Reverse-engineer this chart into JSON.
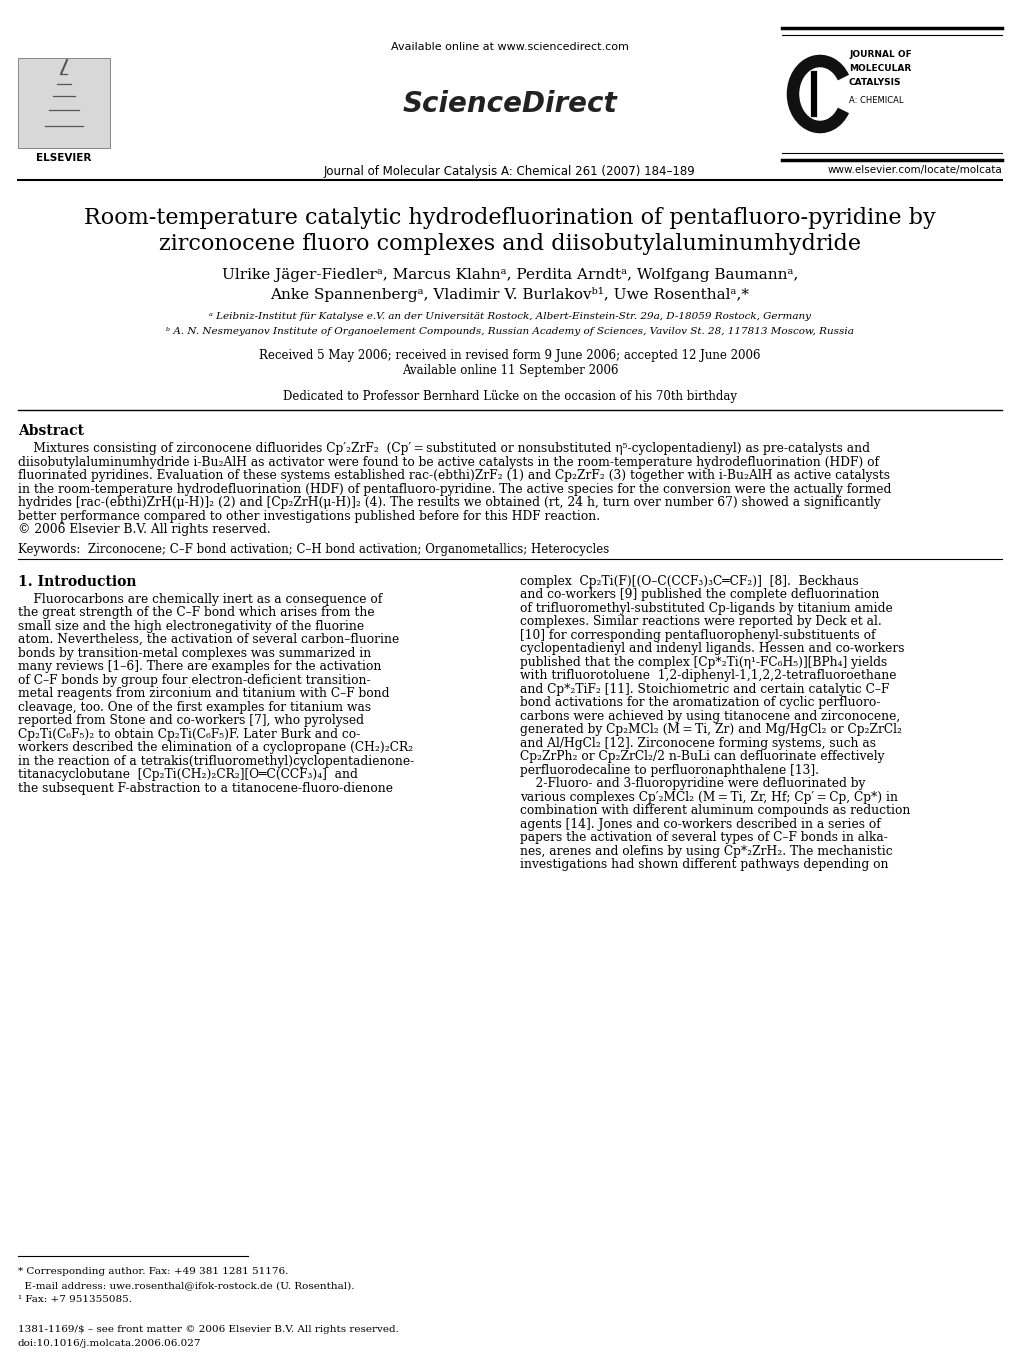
{
  "page_width": 10.2,
  "page_height": 13.61,
  "bg_color": "#ffffff",
  "available_online": "Available online at www.sciencedirect.com",
  "sciencedirect": "ScienceDirect",
  "journal_line": "Journal of Molecular Catalysis A: Chemical 261 (2007) 184–189",
  "website": "www.elsevier.com/locate/molcata",
  "elsevier_label": "ELSEVIER",
  "jmc_1": "JOURNAL OF",
  "jmc_2": "MOLECULAR",
  "jmc_3": "CATALYSIS",
  "jmc_4": "A: CHEMICAL",
  "title_1": "Room-temperature catalytic hydrodefluorination of pentafluoro-pyridine by",
  "title_2": "zirconocene fluoro complexes and diisobutylaluminumhydride",
  "author_1": "Ulrike Jäger-Fiedlerᵃ, Marcus Klahnᵃ, Perdita Arndtᵃ, Wolfgang Baumannᵃ,",
  "author_2": "Anke Spannenbergᵃ, Vladimir V. Burlakovᵇ¹, Uwe Rosenthalᵃ,*",
  "affil_a": "ᵃ Leibniz-Institut für Katalyse e.V. an der Universität Rostock, Albert-Einstein-Str. 29a, D-18059 Rostock, Germany",
  "affil_b": "ᵇ A. N. Nesmeyanov Institute of Organoelement Compounds, Russian Academy of Sciences, Vavilov St. 28, 117813 Moscow, Russia",
  "date_1": "Received 5 May 2006; received in revised form 9 June 2006; accepted 12 June 2006",
  "date_2": "Available online 11 September 2006",
  "dedication": "Dedicated to Professor Bernhard Lücke on the occasion of his 70th birthday",
  "abstract_title": "Abstract",
  "abstract_lines": [
    "    Mixtures consisting of zirconocene difluorides Cp′₂ZrF₂  (Cp′ = substituted or nonsubstituted η⁵-cyclopentadienyl) as pre-catalysts and",
    "diisobutylaluminumhydride i-Bu₂AlH as activator were found to be active catalysts in the room-temperature hydrodefluorination (HDF) of",
    "fluorinated pyridines. Evaluation of these systems established rac-(ebthi)ZrF₂ (1) and Cp₂ZrF₂ (3) together with i-Bu₂AlH as active catalysts",
    "in the room-temperature hydrodefluorination (HDF) of pentafluoro-pyridine. The active species for the conversion were the actually formed",
    "hydrides [rac-(ebthi)ZrH(μ-H)]₂ (2) and [Cp₂ZrH(μ-H)]₂ (4). The results we obtained (rt, 24 h, turn over number 67) showed a significantly",
    "better performance compared to other investigations published before for this HDF reaction.",
    "© 2006 Elsevier B.V. All rights reserved."
  ],
  "keywords": "Keywords:  Zirconocene; C–F bond activation; C–H bond activation; Organometallics; Heterocycles",
  "intro_title": "1. Introduction",
  "col1_lines": [
    "    Fluorocarbons are chemically inert as a consequence of",
    "the great strength of the C–F bond which arises from the",
    "small size and the high electronegativity of the fluorine",
    "atom. Nevertheless, the activation of several carbon–fluorine",
    "bonds by transition-metal complexes was summarized in",
    "many reviews [1–6]. There are examples for the activation",
    "of C–F bonds by group four electron-deficient transition-",
    "metal reagents from zirconium and titanium with C–F bond",
    "cleavage, too. One of the first examples for titanium was",
    "reported from Stone and co-workers [7], who pyrolysed",
    "Cp₂Ti(C₆F₅)₂ to obtain Cp₂Ti(C₆F₅)F. Later Burk and co-",
    "workers described the elimination of a cyclopropane (CH₂)₂CR₂",
    "in the reaction of a tetrakis(trifluoromethyl)cyclopentadienone-",
    "titanacyclobutane  [Cp₂Ti(CH₂)₂CR₂][O═C(CCF₃)₄]  and",
    "the subsequent F-abstraction to a titanocene-fluoro-dienone"
  ],
  "col2_lines": [
    "complex  Cp₂Ti(F)[(O–C(CCF₃)₃C═CF₂)]  [8].  Beckhaus",
    "and co-workers [9] published the complete defluorination",
    "of trifluoromethyl-substituted Cp-ligands by titanium amide",
    "complexes. Similar reactions were reported by Deck et al.",
    "[10] for corresponding pentafluorophenyl-substituents of",
    "cyclopentadienyl and indenyl ligands. Hessen and co-workers",
    "published that the complex [Cp*₂Ti(η¹-FC₆H₅)][BPh₄] yields",
    "with trifluorotoluene  1,2-diphenyl-1,1,2,2-tetrafluoroethane",
    "and Cp*₂TiF₂ [11]. Stoichiometric and certain catalytic C–F",
    "bond activations for the aromatization of cyclic perfluoro-",
    "carbons were achieved by using titanocene and zirconocene,",
    "generated by Cp₂MCl₂ (M = Ti, Zr) and Mg/HgCl₂ or Cp₂ZrCl₂",
    "and Al/HgCl₂ [12]. Zirconocene forming systems, such as",
    "Cp₂ZrPh₂ or Cp₂ZrCl₂/2 n-BuLi can defluorinate effectively",
    "perfluorodecaline to perfluoronaphthalene [13].",
    "    2-Fluoro- and 3-fluoropyridine were defluorinated by",
    "various complexes Cp′₂MCl₂ (M = Ti, Zr, Hf; Cp′ = Cp, Cp*) in",
    "combination with different aluminum compounds as reduction",
    "agents [14]. Jones and co-workers described in a series of",
    "papers the activation of several types of C–F bonds in alka-",
    "nes, arenes and olefins by using Cp*₂ZrH₂. The mechanistic",
    "investigations had shown different pathways depending on"
  ],
  "fn_star": "* Corresponding author. Fax: +49 381 1281 51176.",
  "fn_email": "  E-mail address: uwe.rosenthal@ifok-rostock.de (U. Rosenthal).",
  "fn_1": "¹ Fax: +7 951355085.",
  "bottom_1": "1381-1169/$ – see front matter © 2006 Elsevier B.V. All rights reserved.",
  "bottom_2": "doi:10.1016/j.molcata.2006.06.027"
}
